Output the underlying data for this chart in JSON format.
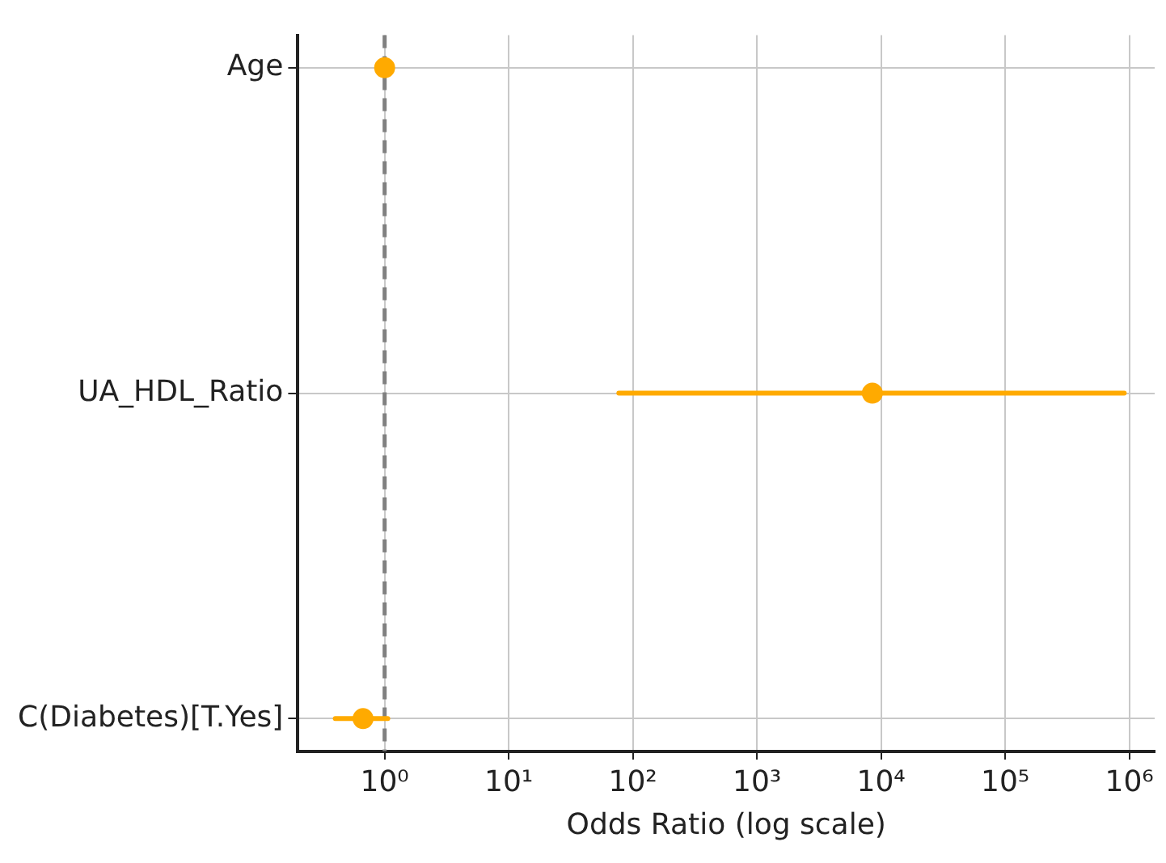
{
  "chart_data": {
    "type": "scatter",
    "orientation": "horizontal",
    "xlabel": "Odds Ratio (log scale)",
    "categories": [
      "Age",
      "UA_HDL_Ratio",
      "C(Diabetes)[T.Yes]"
    ],
    "series": [
      {
        "color": "#ffaa00",
        "values": [
          1.0,
          8500,
          0.67
        ],
        "errors": [
          null,
          [
            77,
            910000
          ],
          [
            0.4,
            1.06
          ]
        ]
      }
    ],
    "log": "x",
    "xlim": [
      0.2,
      1600000
    ],
    "xticks": [
      {
        "value": 1,
        "label": "10⁰"
      },
      {
        "value": 10,
        "label": "10¹"
      },
      {
        "value": 100,
        "label": "10²"
      },
      {
        "value": 1000,
        "label": "10³"
      },
      {
        "value": 10000,
        "label": "10⁴"
      },
      {
        "value": 100000,
        "label": "10⁵"
      },
      {
        "value": 1000000,
        "label": "10⁶"
      }
    ],
    "ref_lines": [
      {
        "axis": "x",
        "value": 1,
        "color": "#808080",
        "line_style": "dashed"
      }
    ],
    "grid": true,
    "marker": "circle",
    "legend": false
  }
}
